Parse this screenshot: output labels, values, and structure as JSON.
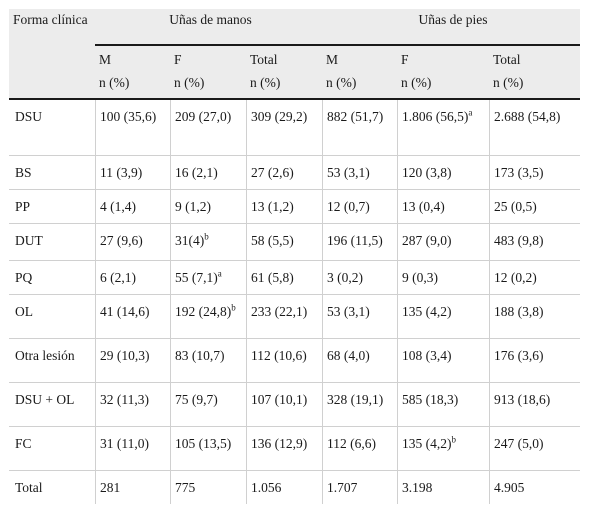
{
  "header": {
    "first_col": "Forma clínica",
    "group_hands": "Uñas de manos",
    "group_feet": "Uñas de pies",
    "sub": [
      "M",
      "F",
      "Total",
      "M",
      "F",
      "Total"
    ],
    "unit": "n (%)"
  },
  "rows": [
    {
      "label": "DSU",
      "cells": [
        {
          "v": "100 (35,6)"
        },
        {
          "v": "209 (27,0)"
        },
        {
          "v": "309 (29,2)"
        },
        {
          "v": "882 (51,7)"
        },
        {
          "v": "1.806 (56,5)",
          "sup": "a"
        },
        {
          "v": "2.688 (54,8)"
        }
      ]
    },
    {
      "label": "BS",
      "cells": [
        {
          "v": "11 (3,9)"
        },
        {
          "v": "16 (2,1)"
        },
        {
          "v": "27 (2,6)"
        },
        {
          "v": "53 (3,1)"
        },
        {
          "v": "120 (3,8)"
        },
        {
          "v": "173 (3,5)"
        }
      ]
    },
    {
      "label": "PP",
      "cells": [
        {
          "v": "4 (1,4)"
        },
        {
          "v": "9 (1,2)"
        },
        {
          "v": "13 (1,2)"
        },
        {
          "v": "12 (0,7)"
        },
        {
          "v": "13 (0,4)"
        },
        {
          "v": "25 (0,5)"
        }
      ]
    },
    {
      "label": "DUT",
      "cells": [
        {
          "v": "27 (9,6)"
        },
        {
          "v": "31(4)",
          "sup": "b"
        },
        {
          "v": "58 (5,5)"
        },
        {
          "v": "196 (11,5)"
        },
        {
          "v": "287 (9,0)"
        },
        {
          "v": "483 (9,8)"
        }
      ]
    },
    {
      "label": "PQ",
      "cells": [
        {
          "v": "6 (2,1)"
        },
        {
          "v": "55 (7,1)",
          "sup": "a"
        },
        {
          "v": "61 (5,8)"
        },
        {
          "v": "3 (0,2)"
        },
        {
          "v": "9 (0,3)"
        },
        {
          "v": "12 (0,2)"
        }
      ]
    },
    {
      "label": "OL",
      "cells": [
        {
          "v": "41 (14,6)"
        },
        {
          "v": "192 (24,8)",
          "sup": "b"
        },
        {
          "v": "233 (22,1)"
        },
        {
          "v": "53 (3,1)"
        },
        {
          "v": "135 (4,2)"
        },
        {
          "v": "188 (3,8)"
        }
      ]
    },
    {
      "label": "Otra lesión",
      "cells": [
        {
          "v": "29 (10,3)"
        },
        {
          "v": "83 (10,7)"
        },
        {
          "v": "112 (10,6)"
        },
        {
          "v": "68 (4,0)"
        },
        {
          "v": "108 (3,4)"
        },
        {
          "v": "176 (3,6)"
        }
      ]
    },
    {
      "label": "DSU + OL",
      "cells": [
        {
          "v": "32 (11,3)"
        },
        {
          "v": "75 (9,7)"
        },
        {
          "v": "107 (10,1)"
        },
        {
          "v": "328 (19,1)"
        },
        {
          "v": "585 (18,3)"
        },
        {
          "v": "913 (18,6)"
        }
      ]
    },
    {
      "label": "FC",
      "cells": [
        {
          "v": "31 (11,0)"
        },
        {
          "v": "105 (13,5)"
        },
        {
          "v": "136 (12,9)"
        },
        {
          "v": "112 (6,6)"
        },
        {
          "v": "135 (4,2)",
          "sup": "b"
        },
        {
          "v": "247 (5,0)"
        }
      ]
    },
    {
      "label": "Total",
      "cells": [
        {
          "v": "281"
        },
        {
          "v": "775"
        },
        {
          "v": "1.056"
        },
        {
          "v": "1.707"
        },
        {
          "v": "3.198"
        },
        {
          "v": "4.905"
        }
      ]
    }
  ]
}
